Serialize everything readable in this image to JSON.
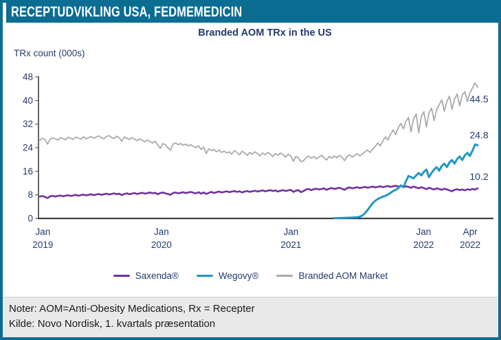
{
  "header": {
    "title": "RECEPTUDVIKLING USA, FEDMEMEDICIN"
  },
  "colors": {
    "accent_teal_bar": "#0a6d91",
    "navy_text": "#223a6d",
    "axis": "#404040",
    "footer_bg": "#e9e9e9"
  },
  "footer": {
    "note1": "Noter: AOM=Anti-Obesity Medications, Rx = Recepter",
    "note2": "Kilde: Novo Nordisk, 1. kvartals præsentation"
  },
  "chart_data": {
    "type": "line",
    "title": "Branded AOM TRx in the US",
    "ylabel": "TRx count (000s)",
    "xlabel": "",
    "ylim": [
      0,
      48
    ],
    "yticks": [
      0,
      8,
      16,
      24,
      32,
      40,
      48
    ],
    "grid": false,
    "legend_position": "bottom",
    "x_unit": "weekly, Jan 2019 - Apr 2022",
    "xticks": [
      {
        "line1": "Jan",
        "line2": "2019",
        "pos": 0.01
      },
      {
        "line1": "Jan",
        "line2": "2020",
        "pos": 0.28
      },
      {
        "line1": "Jan",
        "line2": "2021",
        "pos": 0.575
      },
      {
        "line1": "Jan",
        "line2": "2022",
        "pos": 0.877
      },
      {
        "line1": "Apr",
        "line2": "2022",
        "pos": 0.983
      }
    ],
    "series": [
      {
        "name": "Saxenda®",
        "color": "#7030a0",
        "stroke_width": 2.6,
        "end_label": "10.2",
        "values": [
          7.4,
          7.6,
          7.3,
          6.9,
          7.5,
          7.7,
          7.4,
          7.6,
          7.8,
          7.5,
          7.7,
          7.9,
          7.6,
          7.8,
          8.0,
          7.7,
          7.9,
          8.1,
          7.8,
          8.0,
          8.2,
          7.9,
          8.1,
          8.3,
          8.0,
          8.2,
          8.4,
          8.1,
          8.3,
          8.5,
          8.2,
          8.4,
          7.9,
          8.3,
          8.5,
          8.2,
          8.4,
          8.6,
          8.3,
          8.5,
          8.7,
          8.4,
          8.6,
          8.8,
          8.5,
          8.7,
          8.2,
          8.6,
          8.8,
          8.5,
          8.3,
          8.0,
          8.6,
          8.8,
          8.5,
          8.7,
          8.9,
          8.6,
          8.8,
          9.0,
          8.7,
          8.5,
          8.9,
          8.4,
          8.8,
          8.3,
          8.7,
          9.0,
          8.6,
          8.9,
          9.1,
          8.8,
          9.0,
          9.2,
          8.9,
          9.1,
          9.3,
          9.0,
          9.2,
          8.8,
          9.1,
          9.3,
          9.0,
          9.2,
          9.4,
          9.1,
          9.3,
          9.5,
          9.2,
          9.4,
          9.6,
          9.3,
          9.5,
          9.1,
          9.4,
          9.6,
          9.3,
          9.5,
          9.7,
          9.0,
          9.4,
          9.6,
          8.9,
          9.3,
          9.8,
          10.0,
          9.6,
          9.9,
          10.1,
          9.8,
          10.0,
          10.2,
          9.7,
          10.1,
          10.3,
          10.0,
          10.2,
          10.4,
          10.1,
          9.7,
          10.3,
          10.5,
          10.2,
          10.4,
          10.6,
          10.3,
          10.5,
          10.7,
          10.4,
          10.6,
          10.8,
          10.5,
          10.7,
          10.9,
          10.6,
          10.8,
          11.0,
          10.7,
          10.9,
          11.1,
          10.8,
          11.0,
          10.6,
          10.9,
          10.7,
          10.4,
          10.8,
          10.5,
          10.2,
          10.6,
          10.3,
          9.9,
          10.4,
          10.1,
          9.8,
          10.2,
          10.0,
          9.7,
          10.1,
          9.8,
          9.5,
          9.2,
          9.7,
          9.9,
          9.6,
          9.8,
          9.5,
          9.9,
          9.7,
          10.0,
          9.8,
          10.2
        ]
      },
      {
        "name": "Wegovy®",
        "color": "#2196c4",
        "stroke_width": 3.0,
        "end_label": "24.8",
        "values": [
          null,
          null,
          null,
          null,
          null,
          null,
          null,
          null,
          null,
          null,
          null,
          null,
          null,
          null,
          null,
          null,
          null,
          null,
          null,
          null,
          null,
          null,
          null,
          null,
          null,
          null,
          null,
          null,
          null,
          null,
          null,
          null,
          null,
          null,
          null,
          null,
          null,
          null,
          null,
          null,
          null,
          null,
          null,
          null,
          null,
          null,
          null,
          null,
          null,
          null,
          null,
          null,
          null,
          null,
          null,
          null,
          null,
          null,
          null,
          null,
          null,
          null,
          null,
          null,
          null,
          null,
          null,
          null,
          null,
          null,
          null,
          null,
          null,
          null,
          null,
          null,
          null,
          null,
          null,
          null,
          null,
          null,
          null,
          null,
          null,
          null,
          null,
          null,
          null,
          null,
          null,
          null,
          null,
          null,
          null,
          null,
          null,
          null,
          null,
          null,
          null,
          null,
          null,
          null,
          null,
          null,
          null,
          null,
          null,
          null,
          null,
          null,
          null,
          null,
          null,
          0.1,
          0.1,
          0.15,
          0.15,
          0.2,
          0.2,
          0.25,
          0.3,
          0.35,
          0.4,
          0.6,
          1.0,
          1.8,
          2.8,
          4.0,
          5.2,
          6.0,
          6.6,
          7.0,
          7.4,
          7.7,
          8.1,
          8.7,
          9.3,
          9.7,
          10.3,
          11.2,
          10.6,
          12.6,
          14.4,
          14.0,
          13.6,
          14.6,
          15.4,
          14.6,
          15.8,
          16.6,
          14.0,
          15.4,
          16.6,
          17.4,
          16.2,
          17.8,
          18.6,
          17.4,
          19.0,
          19.8,
          18.6,
          20.2,
          21.0,
          19.8,
          21.4,
          22.2,
          21.2,
          23.0,
          25.1,
          24.8
        ]
      },
      {
        "name": "Branded AOM Market",
        "color": "#a9a9a9",
        "stroke_width": 1.8,
        "end_label": "44.5",
        "values": [
          26.5,
          27.2,
          26.8,
          25.2,
          26.9,
          27.3,
          27.0,
          26.6,
          27.4,
          27.1,
          26.7,
          27.5,
          27.2,
          26.8,
          27.6,
          27.3,
          26.9,
          27.7,
          27.0,
          27.4,
          27.8,
          27.2,
          27.6,
          28.0,
          27.4,
          27.0,
          27.8,
          28.1,
          27.5,
          27.1,
          27.9,
          27.4,
          26.2,
          27.6,
          27.2,
          26.8,
          27.4,
          26.9,
          26.4,
          27.0,
          26.5,
          26.0,
          26.6,
          26.1,
          25.6,
          26.2,
          25.0,
          23.8,
          25.4,
          25.0,
          24.0,
          23.2,
          25.2,
          25.6,
          25.0,
          25.4,
          24.8,
          25.2,
          24.6,
          25.0,
          24.4,
          24.0,
          24.6,
          23.4,
          24.2,
          22.0,
          23.6,
          23.0,
          23.4,
          22.6,
          23.2,
          22.4,
          22.8,
          22.2,
          22.6,
          21.8,
          23.0,
          22.4,
          21.6,
          22.8,
          22.2,
          21.4,
          22.4,
          21.8,
          22.6,
          22.0,
          21.2,
          22.2,
          21.6,
          22.4,
          21.8,
          21.0,
          22.0,
          21.4,
          22.2,
          21.6,
          20.8,
          21.8,
          21.2,
          19.4,
          21.0,
          20.6,
          19.2,
          19.6,
          20.6,
          21.2,
          20.4,
          21.0,
          20.2,
          20.8,
          21.4,
          20.6,
          19.8,
          21.0,
          20.4,
          21.2,
          20.6,
          21.4,
          20.8,
          19.6,
          21.0,
          21.6,
          20.8,
          21.4,
          22.0,
          21.2,
          21.8,
          22.6,
          23.2,
          22.4,
          23.6,
          24.4,
          25.6,
          24.6,
          26.4,
          27.6,
          26.6,
          28.6,
          30.0,
          28.4,
          30.8,
          32.2,
          30.4,
          33.0,
          34.2,
          29.4,
          33.8,
          35.4,
          29.0,
          34.6,
          36.2,
          31.0,
          35.8,
          37.4,
          33.2,
          37.0,
          38.6,
          40.2,
          36.4,
          39.8,
          41.4,
          37.0,
          40.6,
          42.2,
          38.2,
          41.8,
          43.0,
          39.6,
          42.6,
          44.2,
          46.0,
          44.5
        ]
      }
    ]
  }
}
